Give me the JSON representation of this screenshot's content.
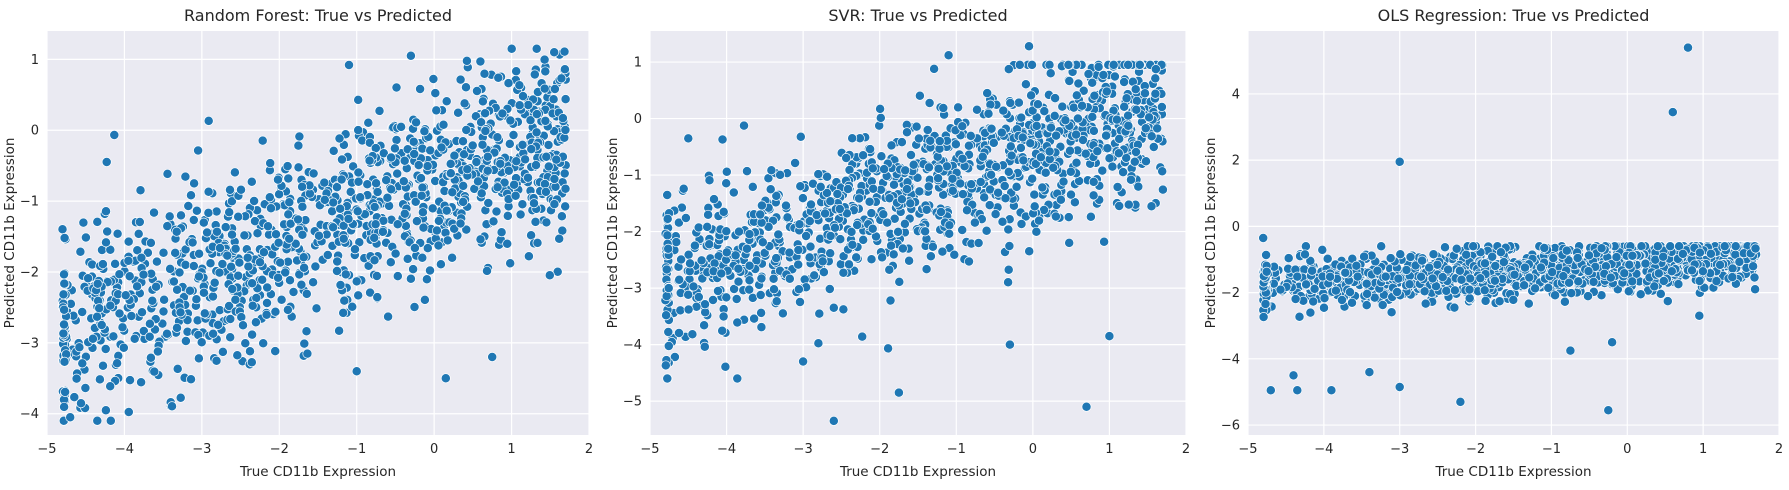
{
  "chart_data": [
    {
      "type": "scatter",
      "title": "Random Forest: True vs Predicted",
      "xlabel": "True CD11b Expression",
      "ylabel": "Predicted CD11b Expression",
      "xlim": [
        -5.0,
        2.0
      ],
      "ylim": [
        -4.3,
        1.4
      ],
      "xticks": [
        -5,
        -4,
        -3,
        -2,
        -1,
        0,
        1,
        2
      ],
      "yticks": [
        -4,
        -3,
        -2,
        -1,
        0,
        1
      ],
      "grid": true,
      "color": "#1f77b4",
      "bulk": {
        "n": 1200,
        "seed": 11,
        "x_min": -4.8,
        "x_max": 1.7,
        "slope": 0.42,
        "intercept": -0.75,
        "noise_sd": 0.68,
        "clip": [
          -4.1,
          1.15
        ]
      },
      "outliers": [
        [
          -0.3,
          1.05
        ],
        [
          -1.1,
          0.92
        ],
        [
          -3.1,
          -0.75
        ],
        [
          0.75,
          -3.2
        ],
        [
          0.15,
          -3.5
        ],
        [
          -1.0,
          -3.4
        ],
        [
          1.55,
          1.1
        ],
        [
          1.45,
          -1.3
        ],
        [
          -4.7,
          -4.05
        ],
        [
          -4.35,
          -4.1
        ]
      ]
    },
    {
      "type": "scatter",
      "title": "SVR: True vs Predicted",
      "xlabel": "True CD11b Expression",
      "ylabel": "Predicted CD11b Expression",
      "xlim": [
        -5.0,
        2.0
      ],
      "ylim": [
        -5.6,
        1.55
      ],
      "xticks": [
        -5,
        -4,
        -3,
        -2,
        -1,
        0,
        1,
        2
      ],
      "yticks": [
        -5,
        -4,
        -3,
        -2,
        -1,
        0,
        1
      ],
      "grid": true,
      "color": "#1f77b4",
      "bulk": {
        "n": 1200,
        "seed": 23,
        "x_min": -4.8,
        "x_max": 1.7,
        "slope": 0.45,
        "intercept": -0.6,
        "noise_sd": 0.72,
        "clip": [
          -4.6,
          0.95
        ]
      },
      "outliers": [
        [
          -0.05,
          1.28
        ],
        [
          -1.1,
          1.12
        ],
        [
          -4.5,
          -0.35
        ],
        [
          -2.6,
          -5.35
        ],
        [
          0.7,
          -5.1
        ],
        [
          -1.75,
          -4.85
        ],
        [
          1.0,
          -3.85
        ],
        [
          -0.3,
          -4.0
        ],
        [
          -3.0,
          -4.3
        ],
        [
          1.55,
          -1.55
        ]
      ]
    },
    {
      "type": "scatter",
      "title": "OLS Regression: True vs Predicted",
      "xlabel": "True CD11b Expression",
      "ylabel": "Predicted CD11b Expression",
      "xlim": [
        -5.0,
        2.0
      ],
      "ylim": [
        -6.3,
        5.9
      ],
      "xticks": [
        -5,
        -4,
        -3,
        -2,
        -1,
        0,
        1,
        2
      ],
      "yticks": [
        -6,
        -4,
        -2,
        0,
        2,
        4
      ],
      "grid": true,
      "color": "#1f77b4",
      "bulk": {
        "n": 1200,
        "seed": 37,
        "x_min": -4.8,
        "x_max": 1.7,
        "slope": 0.12,
        "intercept": -1.2,
        "noise_sd": 0.38,
        "clip": [
          -3.9,
          -0.6
        ]
      },
      "outliers": [
        [
          0.8,
          5.4
        ],
        [
          0.6,
          3.45
        ],
        [
          -3.0,
          1.95
        ],
        [
          -0.25,
          -5.55
        ],
        [
          -2.2,
          -5.3
        ],
        [
          -4.8,
          -0.35
        ],
        [
          -4.7,
          -4.95
        ],
        [
          -4.35,
          -4.95
        ],
        [
          -3.0,
          -4.85
        ],
        [
          -3.9,
          -4.95
        ],
        [
          -4.4,
          -4.5
        ],
        [
          0.95,
          -2.7
        ],
        [
          -0.2,
          -3.5
        ],
        [
          -3.4,
          -4.4
        ],
        [
          -0.75,
          -3.75
        ]
      ]
    }
  ]
}
